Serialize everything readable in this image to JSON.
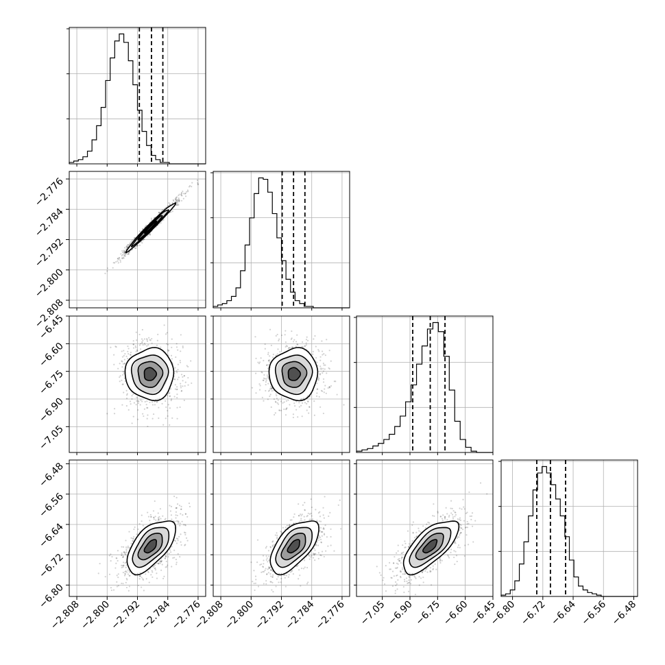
{
  "chart_data": {
    "type": "corner",
    "parameters": [
      {
        "range": [
          -2.81,
          -2.774
        ],
        "ticks": [
          -2.808,
          -2.8,
          -2.792,
          -2.784,
          -2.776
        ],
        "tick_labels": [
          "−2.808",
          "−2.800",
          "−2.792",
          "−2.784",
          "−2.776"
        ],
        "quantiles": [
          -2.7915,
          -2.7883,
          -2.7853
        ],
        "histogram": {
          "bin_start": -2.81,
          "bin_width": 0.0012,
          "counts": [
            1,
            2,
            3,
            5,
            9,
            17,
            27,
            40,
            59,
            75,
            87,
            92,
            86,
            73,
            56,
            38,
            23,
            13,
            6,
            3,
            1,
            1,
            0,
            0,
            0,
            0,
            0,
            0,
            0,
            0
          ]
        }
      },
      {
        "range": [
          -2.81,
          -2.774
        ],
        "ticks": [
          -2.808,
          -2.8,
          -2.792,
          -2.784,
          -2.776
        ],
        "tick_labels": [
          "−2.808",
          "−2.800",
          "−2.792",
          "−2.784",
          "−2.776"
        ],
        "quantiles": [
          -2.7918,
          -2.7888,
          -2.7858
        ],
        "histogram": {
          "bin_start": -2.81,
          "bin_width": 0.0012,
          "counts": [
            1,
            2,
            3,
            5,
            8,
            14,
            26,
            44,
            63,
            80,
            91,
            90,
            81,
            66,
            49,
            33,
            20,
            11,
            5,
            3,
            1,
            1,
            0,
            0,
            0,
            0,
            0,
            0,
            0,
            0
          ]
        }
      },
      {
        "range": [
          -7.19,
          -6.45
        ],
        "ticks": [
          -7.05,
          -6.9,
          -6.75,
          -6.6,
          -6.45
        ],
        "tick_labels": [
          "−7.05",
          "−6.90",
          "−6.75",
          "−6.60",
          "−6.45"
        ],
        "quantiles": [
          -6.885,
          -6.79,
          -6.71
        ],
        "histogram": {
          "bin_start": -7.19,
          "bin_width": 0.0296,
          "counts": [
            1,
            2,
            3,
            5,
            7,
            10,
            14,
            20,
            28,
            39,
            52,
            68,
            82,
            95,
            100,
            93,
            74,
            48,
            24,
            10,
            4,
            1,
            0,
            0,
            0
          ]
        }
      },
      {
        "range": [
          -6.83,
          -6.47
        ],
        "ticks": [
          -6.8,
          -6.72,
          -6.64,
          -6.56,
          -6.48
        ],
        "tick_labels": [
          "−6.80",
          "−6.72",
          "−6.64",
          "−6.56",
          "−6.48"
        ],
        "quantiles": [
          -6.736,
          -6.7,
          -6.66
        ],
        "histogram": {
          "bin_start": -6.83,
          "bin_width": 0.012,
          "counts": [
            1,
            2,
            5,
            12,
            25,
            42,
            62,
            82,
            95,
            100,
            95,
            86,
            75,
            62,
            46,
            28,
            15,
            8,
            5,
            3,
            2,
            1,
            0,
            0,
            0,
            0,
            0,
            0,
            0,
            0
          ]
        }
      }
    ],
    "pairs": [
      {
        "row": 1,
        "col": 0,
        "center": [
          -2.7885,
          -2.7887
        ],
        "sigma": [
          0.0032,
          0.0032
        ],
        "rho": 0.985
      },
      {
        "row": 2,
        "col": 0,
        "center": [
          -2.7887,
          -6.765
        ],
        "sigma": [
          0.0032,
          0.07
        ],
        "rho": 0.0
      },
      {
        "row": 2,
        "col": 1,
        "center": [
          -2.7887,
          -6.765
        ],
        "sigma": [
          0.0032,
          0.07
        ],
        "rho": 0.0
      },
      {
        "row": 3,
        "col": 0,
        "center": [
          -2.7885,
          -6.698
        ],
        "sigma": [
          0.0032,
          0.035
        ],
        "rho": 0.6
      },
      {
        "row": 3,
        "col": 1,
        "center": [
          -2.7887,
          -6.698
        ],
        "sigma": [
          0.0032,
          0.035
        ],
        "rho": 0.6
      },
      {
        "row": 3,
        "col": 2,
        "center": [
          -6.79,
          -6.698
        ],
        "sigma": [
          0.075,
          0.035
        ],
        "rho": 0.7
      }
    ],
    "contour_levels_sigma": [
      0.5,
      1.0,
      1.5,
      2.0
    ],
    "grid": true
  }
}
